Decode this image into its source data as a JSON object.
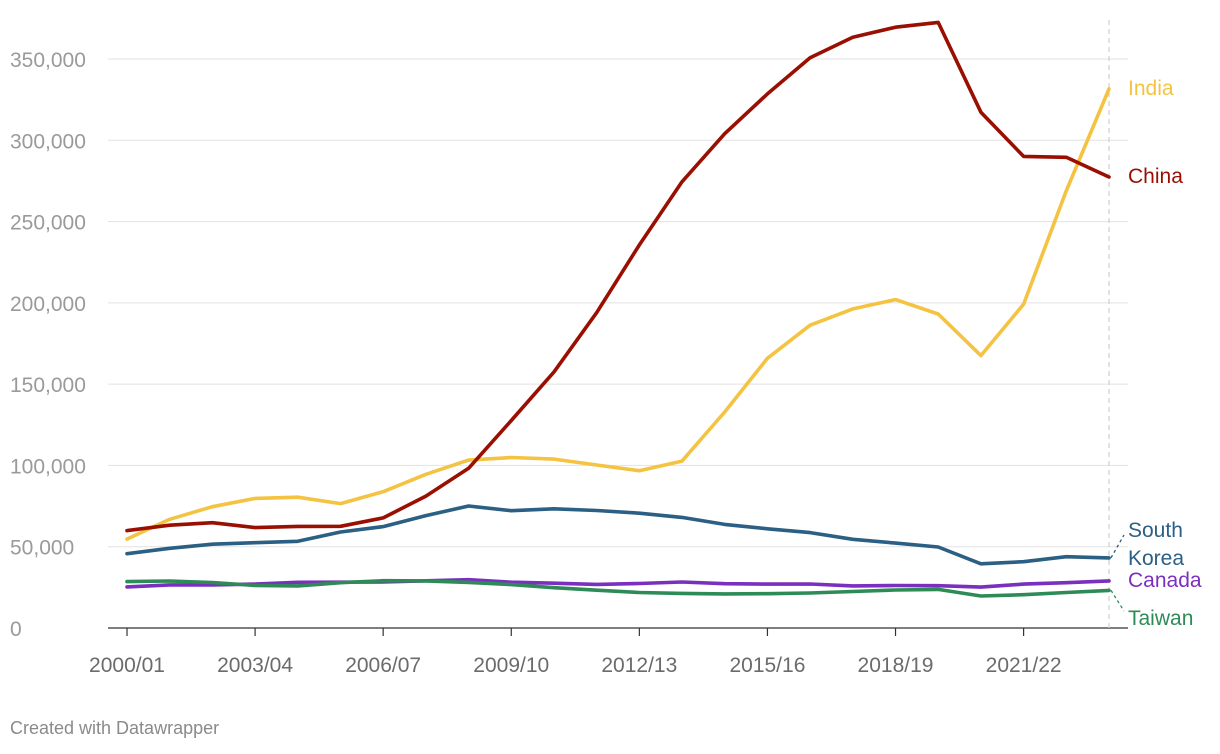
{
  "credit": "Created with Datawrapper",
  "chart_data": {
    "type": "line",
    "title": "",
    "xlabel": "",
    "ylabel": "",
    "ylim": [
      0,
      375000
    ],
    "yticks": [
      0,
      50000,
      100000,
      150000,
      200000,
      250000,
      300000,
      350000
    ],
    "ytick_labels": [
      "0",
      "50,000",
      "100,000",
      "150,000",
      "200,000",
      "250,000",
      "300,000",
      "350,000"
    ],
    "grid": true,
    "legend": "direct labels at line ends (right)",
    "x": [
      "2000/01",
      "2001/02",
      "2002/03",
      "2003/04",
      "2004/05",
      "2005/06",
      "2006/07",
      "2007/08",
      "2008/09",
      "2009/10",
      "2010/11",
      "2011/12",
      "2012/13",
      "2013/14",
      "2014/15",
      "2015/16",
      "2016/17",
      "2017/18",
      "2018/19",
      "2019/20",
      "2020/21",
      "2021/22",
      "2022/23",
      "2023/24"
    ],
    "xtick_labels": [
      "2000/01",
      "2003/04",
      "2006/07",
      "2009/10",
      "2012/13",
      "2015/16",
      "2018/19",
      "2021/22"
    ],
    "series": [
      {
        "name": "India",
        "color": "#f5c342",
        "label_lines": [
          "India"
        ],
        "values": [
          54664,
          66836,
          74603,
          79736,
          80466,
          76503,
          83833,
          94563,
          103260,
          104897,
          103895,
          100270,
          96754,
          102673,
          132888,
          165918,
          186267,
          196271,
          202014,
          193124,
          167582,
          199182,
          268923,
          331602
        ]
      },
      {
        "name": "China",
        "color": "#990f02",
        "label_lines": [
          "China"
        ],
        "values": [
          59939,
          63211,
          64757,
          61765,
          62523,
          62582,
          67723,
          81127,
          98235,
          127628,
          157558,
          194029,
          235597,
          274439,
          304040,
          328547,
          350755,
          363341,
          369548,
          372532,
          317299,
          290086,
          289526,
          277398
        ]
      },
      {
        "name": "South Korea",
        "color": "#2b5f84",
        "label_lines": [
          "South",
          "Korea"
        ],
        "values": [
          45685,
          49046,
          51519,
          52484,
          53358,
          59022,
          62392,
          69124,
          75065,
          72153,
          73351,
          72295,
          70627,
          68047,
          63710,
          61007,
          58663,
          54555,
          52250,
          49809,
          39491,
          40755,
          43847,
          43149
        ]
      },
      {
        "name": "Canada",
        "color": "#7b2fbf",
        "label_lines": [
          "Canada"
        ],
        "values": [
          25279,
          26514,
          26513,
          27017,
          28140,
          28202,
          28280,
          29051,
          29697,
          28145,
          27546,
          26821,
          27357,
          28304,
          27240,
          26973,
          27065,
          25909,
          26122,
          25992,
          25143,
          27013,
          27876,
          28998
        ]
      },
      {
        "name": "Taiwan",
        "color": "#2e8b57",
        "label_lines": [
          "Taiwan"
        ],
        "values": [
          28566,
          28930,
          28017,
          26178,
          25914,
          27876,
          29094,
          29001,
          28065,
          26685,
          24818,
          23250,
          21867,
          21266,
          20993,
          21127,
          21516,
          22454,
          23369,
          23724,
          19673,
          20487,
          21834,
          23157
        ]
      }
    ]
  }
}
